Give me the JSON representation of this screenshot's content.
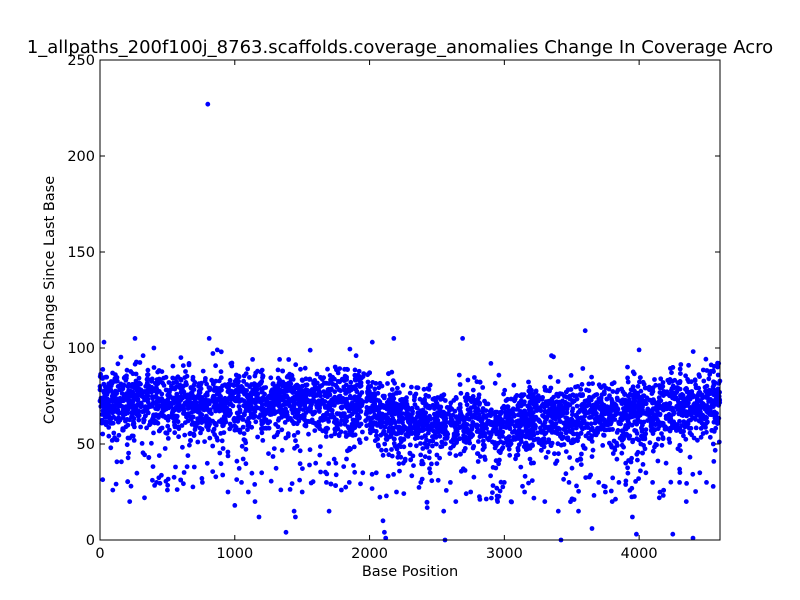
{
  "chart_data": {
    "type": "scatter",
    "title": "1_allpaths_200f100j_8763.scaffolds.coverage_anomalies Change In Coverage Acro",
    "xlabel": "Base Position",
    "ylabel": "Coverage Change Since Last Base",
    "xlim": [
      0,
      4600
    ],
    "ylim": [
      0,
      250
    ],
    "xticks": [
      0,
      1000,
      2000,
      3000,
      4000
    ],
    "yticks": [
      0,
      50,
      100,
      150,
      200,
      250
    ],
    "grid": false,
    "marker_color": "#0000ff",
    "series": [
      {
        "points": [
          [
            0,
            80
          ],
          [
            30,
            103
          ],
          [
            80,
            48
          ],
          [
            95,
            26
          ],
          [
            220,
            20
          ],
          [
            230,
            28
          ],
          [
            260,
            105
          ],
          [
            320,
            96
          ],
          [
            330,
            22
          ],
          [
            400,
            100
          ],
          [
            420,
            30
          ],
          [
            500,
            26
          ],
          [
            560,
            38
          ],
          [
            600,
            95
          ],
          [
            660,
            92
          ],
          [
            700,
            38
          ],
          [
            760,
            30
          ],
          [
            800,
            227
          ],
          [
            810,
            105
          ],
          [
            870,
            99
          ],
          [
            900,
            98
          ],
          [
            950,
            25
          ],
          [
            1000,
            18
          ],
          [
            1050,
            30
          ],
          [
            1100,
            25
          ],
          [
            1150,
            20
          ],
          [
            1180,
            12
          ],
          [
            1200,
            35
          ],
          [
            1250,
            45
          ],
          [
            1380,
            4
          ],
          [
            1400,
            94
          ],
          [
            1440,
            15
          ],
          [
            1450,
            12
          ],
          [
            1500,
            25
          ],
          [
            1600,
            40
          ],
          [
            1680,
            30
          ],
          [
            1700,
            15
          ],
          [
            1750,
            40
          ],
          [
            1850,
            30
          ],
          [
            1900,
            96
          ],
          [
            1950,
            35
          ],
          [
            2020,
            103
          ],
          [
            2050,
            35
          ],
          [
            2100,
            10
          ],
          [
            2110,
            4
          ],
          [
            2120,
            1
          ],
          [
            2180,
            105
          ],
          [
            2200,
            25
          ],
          [
            2250,
            40
          ],
          [
            2300,
            45
          ],
          [
            2380,
            30
          ],
          [
            2450,
            35
          ],
          [
            2550,
            15
          ],
          [
            2560,
            0
          ],
          [
            2600,
            30
          ],
          [
            2640,
            20
          ],
          [
            2690,
            105
          ],
          [
            2750,
            25
          ],
          [
            2800,
            45
          ],
          [
            2900,
            92
          ],
          [
            2950,
            20
          ],
          [
            3000,
            30
          ],
          [
            3050,
            20
          ],
          [
            3150,
            25
          ],
          [
            3200,
            40
          ],
          [
            3300,
            20
          ],
          [
            3350,
            96
          ],
          [
            3400,
            15
          ],
          [
            3420,
            0
          ],
          [
            3480,
            30
          ],
          [
            3550,
            15
          ],
          [
            3600,
            109
          ],
          [
            3650,
            6
          ],
          [
            3700,
            30
          ],
          [
            3750,
            25
          ],
          [
            3800,
            20
          ],
          [
            3850,
            30
          ],
          [
            3900,
            40
          ],
          [
            3950,
            12
          ],
          [
            3980,
            3
          ],
          [
            4000,
            99
          ],
          [
            4050,
            35
          ],
          [
            4100,
            30
          ],
          [
            4150,
            22
          ],
          [
            4200,
            40
          ],
          [
            4250,
            3
          ],
          [
            4300,
            30
          ],
          [
            4350,
            20
          ],
          [
            4400,
            1
          ],
          [
            4450,
            35
          ],
          [
            4500,
            30
          ],
          [
            4550,
            50
          ],
          [
            4590,
            92
          ]
        ],
        "dense_band": {
          "count": 4200,
          "x_range": [
            0,
            4600
          ],
          "typical_y_range": [
            45,
            95
          ]
        }
      }
    ]
  }
}
